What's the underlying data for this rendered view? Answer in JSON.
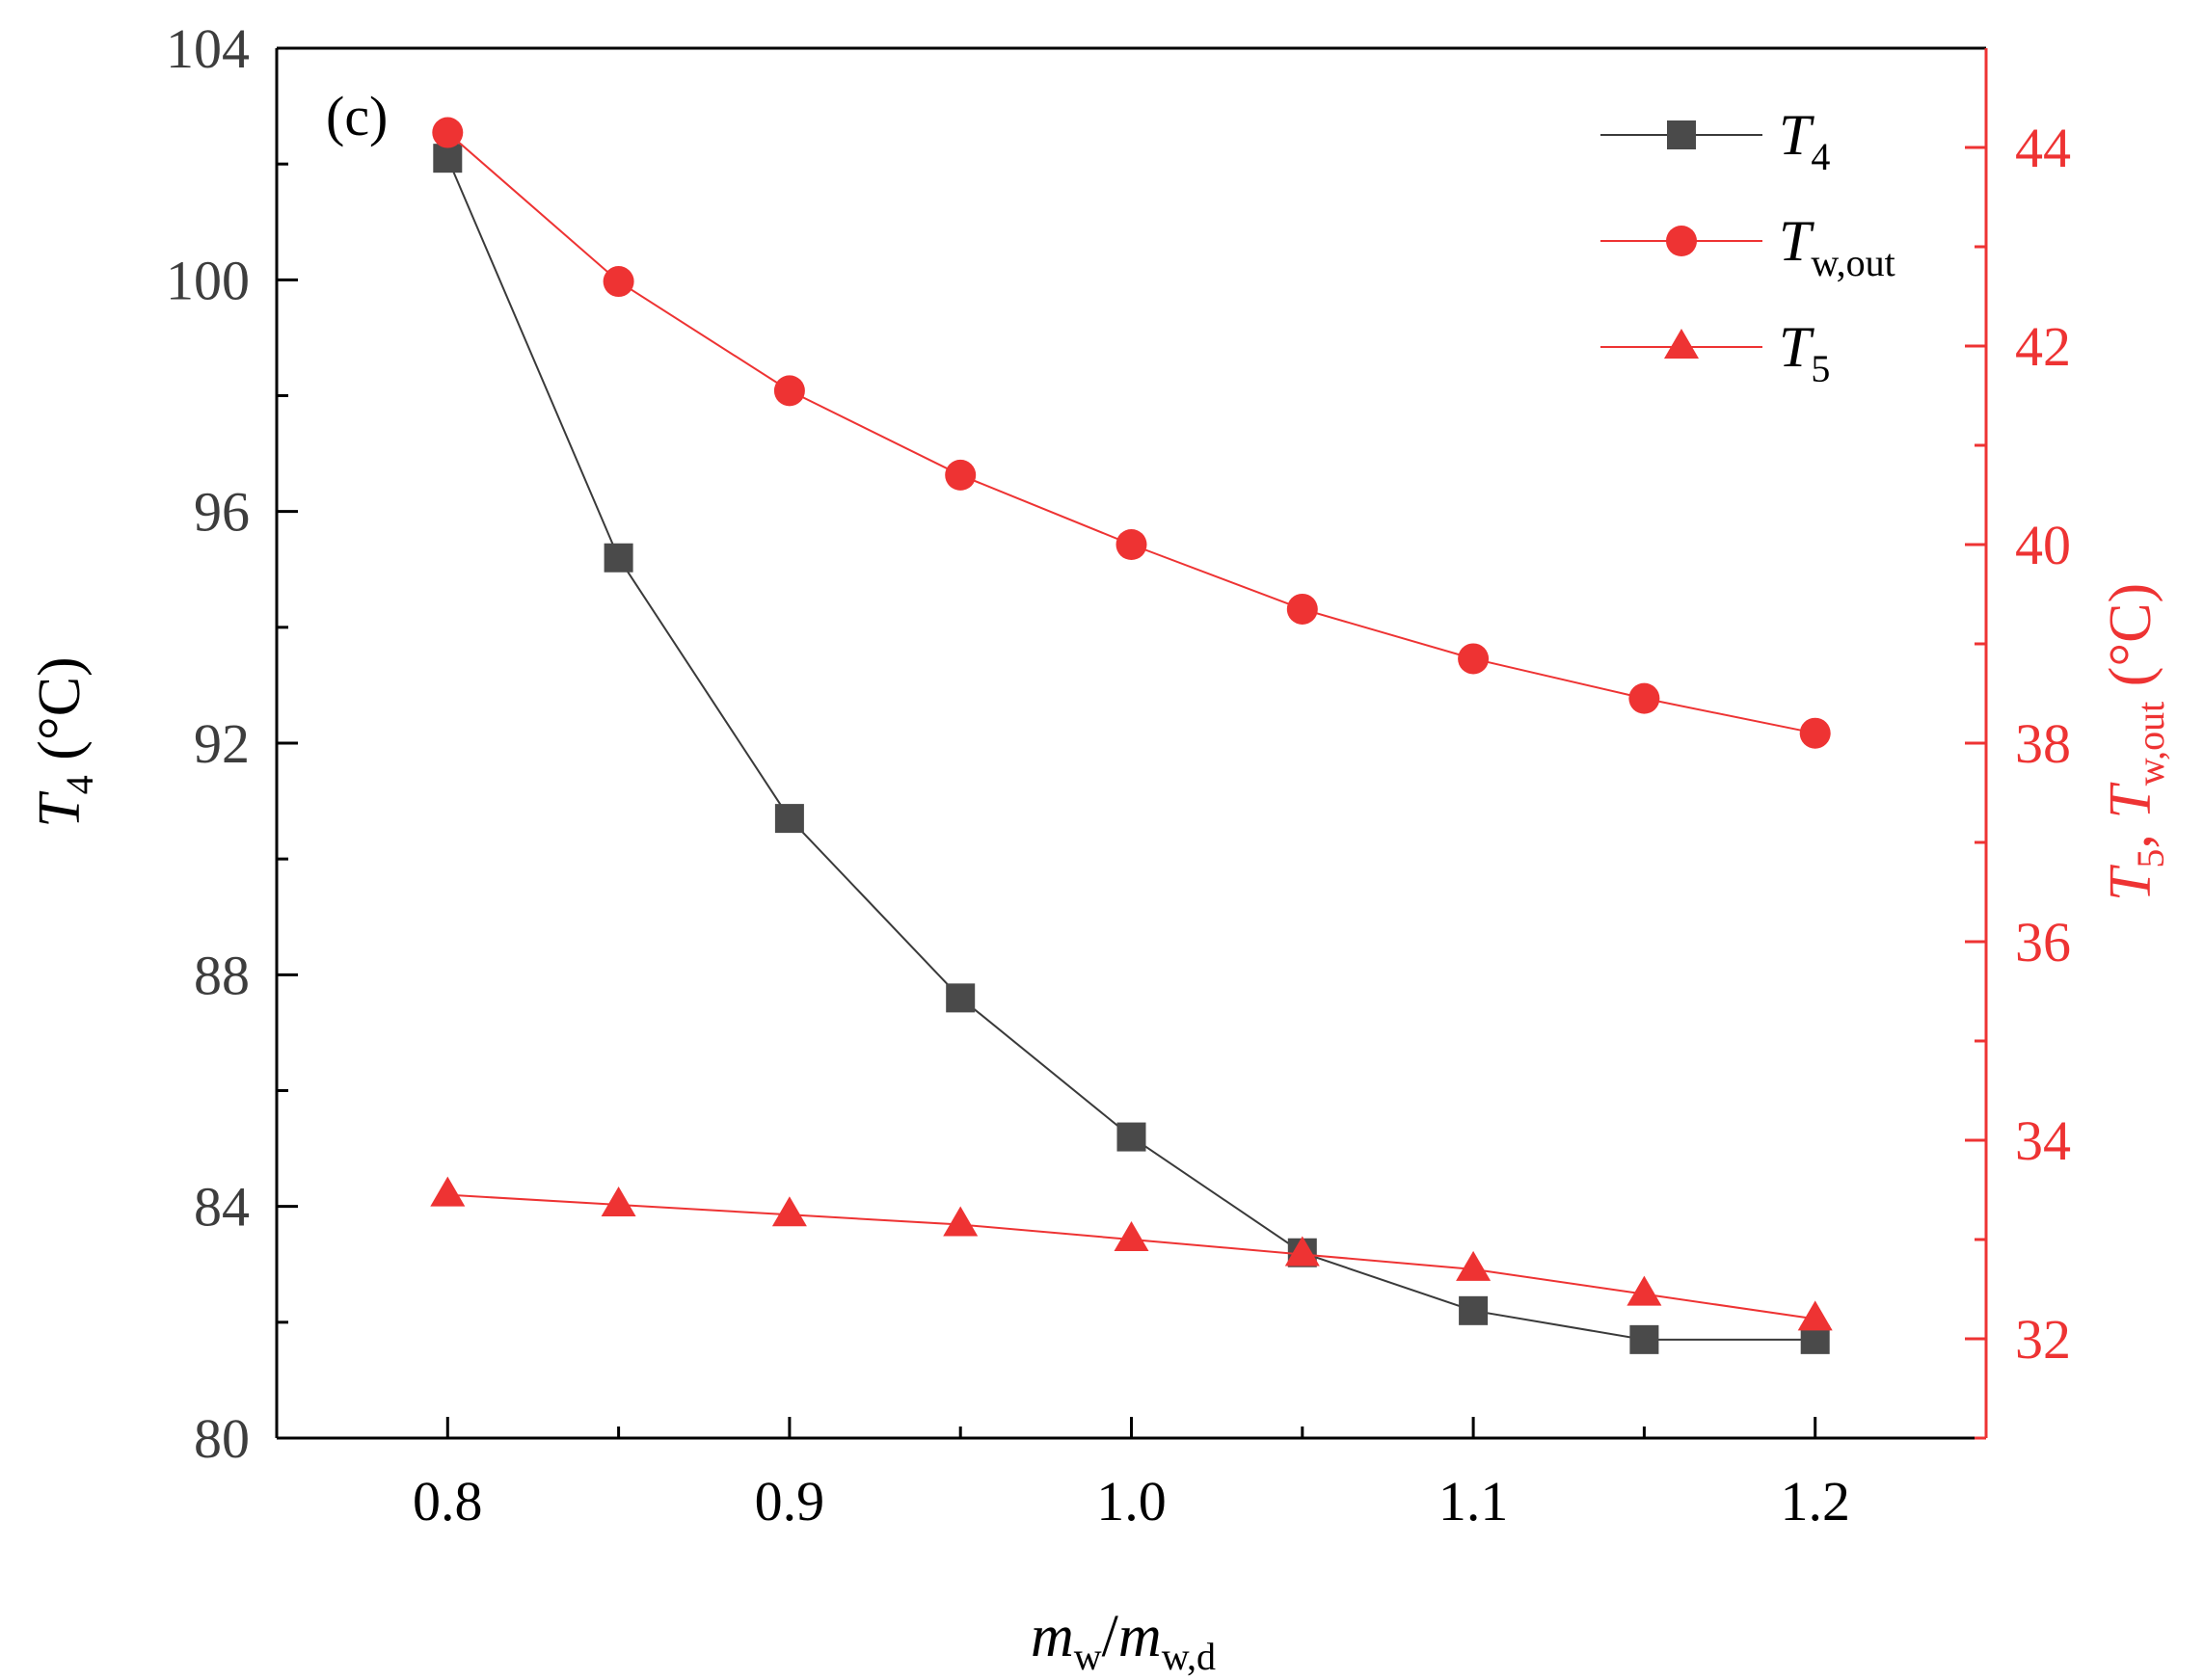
{
  "chart_data": {
    "type": "line",
    "panel_label": "(c)",
    "x": [
      0.8,
      0.85,
      0.9,
      0.95,
      1.0,
      1.05,
      1.1,
      1.15,
      1.2
    ],
    "xlim": [
      0.75,
      1.25
    ],
    "xticks": [
      {
        "value": 0.8,
        "label": "0.8"
      },
      {
        "value": 0.9,
        "label": "0.9"
      },
      {
        "value": 1.0,
        "label": "1.0"
      },
      {
        "value": 1.1,
        "label": "1.1"
      },
      {
        "value": 1.2,
        "label": "1.2"
      }
    ],
    "xlabel": {
      "m1": "m",
      "s1": "w",
      "slash": "/",
      "m2": "m",
      "s2": "w,d"
    },
    "left_axis": {
      "ylim": [
        80,
        104
      ],
      "ticks": [
        {
          "value": 80,
          "label": "80"
        },
        {
          "value": 84,
          "label": "84"
        },
        {
          "value": 88,
          "label": "88"
        },
        {
          "value": 92,
          "label": "92"
        },
        {
          "value": 96,
          "label": "96"
        },
        {
          "value": 100,
          "label": "100"
        },
        {
          "value": 104,
          "label": "104"
        }
      ],
      "label": {
        "t": "T",
        "sub": "4",
        "unit": " (°C)"
      },
      "color": "#000000",
      "tick_color": "#3d3d3d"
    },
    "right_axis": {
      "ylim": [
        31,
        45
      ],
      "ticks": [
        {
          "value": 32,
          "label": "32"
        },
        {
          "value": 34,
          "label": "34"
        },
        {
          "value": 36,
          "label": "36"
        },
        {
          "value": 38,
          "label": "38"
        },
        {
          "value": 40,
          "label": "40"
        },
        {
          "value": 42,
          "label": "42"
        },
        {
          "value": 44,
          "label": "44"
        }
      ],
      "label": {
        "t1": "T",
        "sub1": "5",
        "sep": ", ",
        "t2": "T",
        "sub2": "w,out",
        "unit": " (°C)"
      },
      "color": "#ee3333"
    },
    "series": [
      {
        "key": "t4",
        "name": {
          "t": "T",
          "sub": "4"
        },
        "axis": "left",
        "marker": "square",
        "color": "#4a4a4a",
        "line_color": "#3a3a3a",
        "values": [
          102.1,
          95.2,
          90.7,
          87.6,
          85.2,
          83.2,
          82.2,
          81.7,
          81.7
        ]
      },
      {
        "key": "tw_out",
        "name": {
          "t": "T",
          "sub": "w,out"
        },
        "axis": "right",
        "marker": "circle",
        "color": "#ee3333",
        "line_color": "#ee3333",
        "values": [
          44.15,
          42.65,
          41.55,
          40.7,
          40.0,
          39.35,
          38.85,
          38.45,
          38.1
        ]
      },
      {
        "key": "t5",
        "name": {
          "t": "T",
          "sub": "5"
        },
        "axis": "right",
        "marker": "triangle",
        "color": "#ee3333",
        "line_color": "#ee3333",
        "values": [
          33.45,
          33.35,
          33.25,
          33.15,
          33.0,
          32.85,
          32.7,
          32.45,
          32.2
        ]
      }
    ],
    "legend_position": "top-right",
    "grid": false
  }
}
